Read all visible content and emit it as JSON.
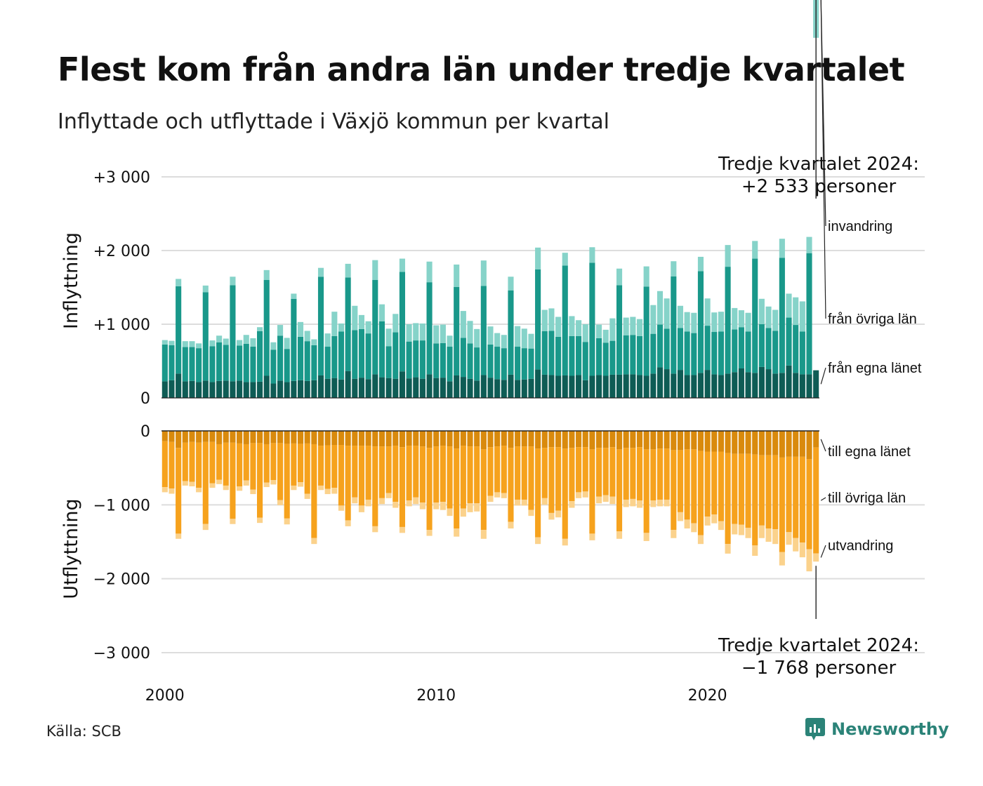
{
  "title": "Flest kom från andra län under tredje kvartalet",
  "subtitle": "Inflyttade och utflyttade i Växjö kommun per kvartal",
  "source": "Källa: SCB",
  "brand": "Newsworthy",
  "annotations": {
    "top_line1": "Tredje kvartalet 2024:",
    "top_line2": "+2 533 personer",
    "bottom_line1": "Tredje kvartalet 2024:",
    "bottom_line2": "−1 768 personer"
  },
  "colors": {
    "in_egna": "#0e5c55",
    "in_ovriga": "#19988a",
    "in_invandring": "#86d3c9",
    "out_egna": "#d98a0d",
    "out_ovriga": "#f6a21d",
    "out_utvandring": "#fbd28c",
    "grid": "#dddddd",
    "brand": "#2b8378"
  },
  "chart_data": {
    "type": "bar",
    "stacked": true,
    "x_start": "2000 Q1",
    "x_end": "2024 Q3",
    "x_ticks": [
      "2000",
      "2010",
      "2020"
    ],
    "panels": [
      {
        "name": "Inflyttning",
        "ylabel": "Inflyttning",
        "ylim": [
          0,
          3000
        ],
        "yticks": [
          0,
          1000,
          2000,
          3000
        ],
        "ytick_labels": [
          "0",
          "+1 000",
          "+2 000",
          "+3 000"
        ],
        "series": [
          {
            "name": "från egna länet",
            "values": [
              225,
              240,
              330,
              225,
              230,
              215,
              235,
              215,
              230,
              235,
              225,
              235,
              215,
              215,
              220,
              300,
              195,
              235,
              215,
              230,
              240,
              230,
              240,
              305,
              260,
              270,
              250,
              365,
              260,
              275,
              255,
              320,
              280,
              270,
              260,
              360,
              265,
              280,
              260,
              320,
              270,
              275,
              225,
              305,
              285,
              260,
              235,
              310,
              275,
              255,
              245,
              315,
              245,
              250,
              260,
              385,
              315,
              310,
              300,
              305,
              300,
              310,
              240,
              300,
              310,
              300,
              315,
              315,
              320,
              320,
              310,
              300,
              330,
              415,
              390,
              330,
              380,
              310,
              310,
              340,
              380,
              320,
              310,
              330,
              350,
              400,
              350,
              340,
              420,
              390,
              330,
              340,
              440,
              340,
              320,
              320,
              375
            ]
          },
          {
            "name": "från övriga län",
            "values": [
              500,
              475,
              1185,
              465,
              460,
              460,
              1200,
              485,
              525,
              485,
              1305,
              475,
              520,
              480,
              685,
              1300,
              460,
              610,
              450,
              1115,
              590,
              540,
              475,
              1340,
              435,
              570,
              650,
              1270,
              660,
              660,
              620,
              1280,
              760,
              430,
              630,
              1350,
              500,
              500,
              520,
              1250,
              470,
              470,
              470,
              1200,
              530,
              480,
              450,
              1210,
              450,
              440,
              430,
              1145,
              450,
              425,
              410,
              1360,
              590,
              600,
              530,
              1490,
              540,
              530,
              520,
              1535,
              500,
              450,
              460,
              1215,
              530,
              535,
              530,
              1210,
              540,
              580,
              550,
              1320,
              570,
              590,
              570,
              1380,
              600,
              575,
              590,
              1450,
              580,
              560,
              550,
              1550,
              580,
              560,
              580,
              1560,
              650,
              650,
              580,
              1645
            ]
          },
          {
            "name": "invandring",
            "values": [
              60,
              60,
              100,
              80,
              80,
              65,
              90,
              80,
              90,
              85,
              115,
              75,
              120,
              115,
              55,
              135,
              100,
              145,
              150,
              70,
              200,
              140,
              80,
              120,
              180,
              330,
              110,
              185,
              330,
              190,
              165,
              270,
              230,
              240,
              250,
              180,
              235,
              235,
              230,
              280,
              245,
              250,
              150,
              305,
              365,
              305,
              250,
              345,
              245,
              185,
              180,
              185,
              280,
              265,
              200,
              295,
              290,
              305,
              270,
              175,
              270,
              215,
              240,
              210,
              185,
              175,
              305,
              225,
              240,
              245,
              230,
              275,
              390,
              455,
              410,
              205,
              300,
              265,
              275,
              195,
              370,
              265,
              270,
              295,
              290,
              230,
              255,
              240,
              345,
              290,
              285,
              260,
              325,
              375,
              410,
              220,
              513
            ]
          }
        ]
      },
      {
        "name": "Utflyttning",
        "ylabel": "Utflyttning",
        "ylim": [
          -3000,
          0
        ],
        "yticks": [
          0,
          -1000,
          -2000,
          -3000
        ],
        "ytick_labels": [
          "0",
          "−1 000",
          "−2 000",
          "−3 000"
        ],
        "series": [
          {
            "name": "till egna länet",
            "values": [
              -140,
              -150,
              -230,
              -160,
              -150,
              -160,
              -150,
              -150,
              -180,
              -160,
              -160,
              -170,
              -180,
              -165,
              -165,
              -180,
              -165,
              -165,
              -175,
              -170,
              -175,
              -170,
              -180,
              -200,
              -195,
              -190,
              -190,
              -200,
              -200,
              -200,
              -200,
              -210,
              -210,
              -210,
              -200,
              -220,
              -200,
              -200,
              -210,
              -230,
              -210,
              -200,
              -210,
              -240,
              -200,
              -210,
              -210,
              -250,
              -220,
              -210,
              -200,
              -230,
              -210,
              -210,
              -210,
              -240,
              -230,
              -220,
              -220,
              -240,
              -230,
              -220,
              -220,
              -250,
              -230,
              -230,
              -220,
              -250,
              -230,
              -230,
              -220,
              -250,
              -250,
              -240,
              -240,
              -260,
              -260,
              -250,
              -250,
              -270,
              -280,
              -280,
              -280,
              -300,
              -310,
              -310,
              -310,
              -320,
              -330,
              -330,
              -330,
              -360,
              -350,
              -350,
              -350,
              -380,
              -225
            ]
          },
          {
            "name": "till övriga län",
            "values": [
              -620,
              -630,
              -1160,
              -520,
              -540,
              -610,
              -1110,
              -560,
              -480,
              -580,
              -1030,
              -580,
              -490,
              -630,
              -1010,
              -520,
              -500,
              -770,
              -1010,
              -570,
              -520,
              -680,
              -1270,
              -540,
              -590,
              -580,
              -820,
              -1010,
              -700,
              -810,
              -730,
              -1080,
              -700,
              -630,
              -760,
              -1080,
              -740,
              -700,
              -760,
              -1110,
              -760,
              -760,
              -840,
              -1080,
              -850,
              -770,
              -770,
              -1090,
              -660,
              -620,
              -640,
              -1000,
              -720,
              -720,
              -860,
              -1200,
              -680,
              -890,
              -860,
              -1220,
              -720,
              -610,
              -600,
              -1140,
              -660,
              -640,
              -670,
              -1110,
              -700,
              -690,
              -720,
              -1130,
              -690,
              -690,
              -690,
              -1080,
              -840,
              -950,
              -1000,
              -1140,
              -880,
              -850,
              -940,
              -1230,
              -950,
              -960,
              -1000,
              -1230,
              -950,
              -990,
              -1000,
              -1280,
              -1020,
              -1100,
              -1160,
              -1220,
              -1433
            ]
          },
          {
            "name": "utvandring",
            "values": [
              -70,
              -70,
              -70,
              -60,
              -60,
              -60,
              -80,
              -60,
              -60,
              -60,
              -70,
              -60,
              -70,
              -60,
              -70,
              -60,
              -60,
              -70,
              -80,
              -60,
              -60,
              -70,
              -80,
              -60,
              -70,
              -80,
              -70,
              -80,
              -80,
              -90,
              -90,
              -80,
              -80,
              -70,
              -80,
              -80,
              -80,
              -90,
              -90,
              -80,
              -90,
              -110,
              -100,
              -110,
              -110,
              -120,
              -110,
              -120,
              -80,
              -70,
              -70,
              -90,
              -80,
              -80,
              -80,
              -90,
              -90,
              -90,
              -90,
              -90,
              -90,
              -80,
              -80,
              -90,
              -90,
              -90,
              -100,
              -100,
              -100,
              -100,
              -100,
              -110,
              -90,
              -90,
              -90,
              -110,
              -120,
              -120,
              -120,
              -120,
              -120,
              -120,
              -120,
              -130,
              -140,
              -140,
              -140,
              -140,
              -170,
              -180,
              -200,
              -180,
              -170,
              -180,
              -200,
              -300,
              -110
            ]
          }
        ],
        "legend_labels_note": "series labels printed at right of chart"
      }
    ]
  }
}
